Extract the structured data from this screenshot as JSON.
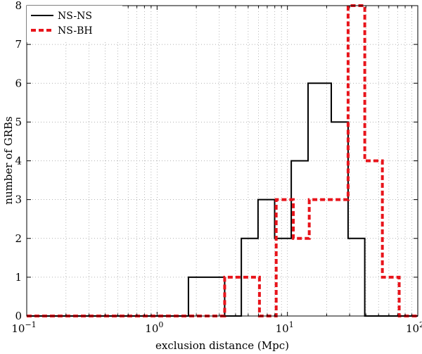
{
  "chart_data": {
    "type": "step-histogram",
    "xlabel": "exclusion distance (Mpc)",
    "ylabel": "number of GRBs",
    "x_scale": "log",
    "xlim": [
      0.1,
      100
    ],
    "ylim": [
      0,
      8
    ],
    "x_ticks": [
      {
        "value": 0.1,
        "base": "10",
        "exp": "−1"
      },
      {
        "value": 1,
        "base": "10",
        "exp": "0"
      },
      {
        "value": 10,
        "base": "10",
        "exp": "1"
      },
      {
        "value": 100,
        "base": "10",
        "exp": "2"
      }
    ],
    "y_ticks": [
      "0",
      "1",
      "2",
      "3",
      "4",
      "5",
      "6",
      "7",
      "8"
    ],
    "grid": true,
    "legend_position": "top-left",
    "series": [
      {
        "name": "NS-NS",
        "color": "#000000",
        "style": "solid",
        "bins": [
          {
            "x0": 0.1,
            "x1": 1.74,
            "count": 0
          },
          {
            "x0": 1.74,
            "x1": 3.3,
            "count": 1
          },
          {
            "x0": 3.3,
            "x1": 4.43,
            "count": 0
          },
          {
            "x0": 4.43,
            "x1": 5.95,
            "count": 2
          },
          {
            "x0": 5.95,
            "x1": 7.98,
            "count": 3
          },
          {
            "x0": 7.98,
            "x1": 10.7,
            "count": 2
          },
          {
            "x0": 10.7,
            "x1": 14.4,
            "count": 4
          },
          {
            "x0": 14.4,
            "x1": 21.7,
            "count": 6
          },
          {
            "x0": 21.7,
            "x1": 29.2,
            "count": 5
          },
          {
            "x0": 29.2,
            "x1": 39.2,
            "count": 2
          },
          {
            "x0": 39.2,
            "x1": 100,
            "count": 0
          }
        ]
      },
      {
        "name": "NS-BH",
        "color": "#e8141b",
        "style": "dashed",
        "bins": [
          {
            "x0": 0.1,
            "x1": 3.3,
            "count": 0
          },
          {
            "x0": 3.3,
            "x1": 6.1,
            "count": 1
          },
          {
            "x0": 6.1,
            "x1": 8.2,
            "count": 0
          },
          {
            "x0": 8.2,
            "x1": 11.1,
            "count": 3
          },
          {
            "x0": 11.1,
            "x1": 14.7,
            "count": 2
          },
          {
            "x0": 14.7,
            "x1": 29.2,
            "count": 3
          },
          {
            "x0": 29.2,
            "x1": 39.2,
            "count": 8
          },
          {
            "x0": 39.2,
            "x1": 53.5,
            "count": 4
          },
          {
            "x0": 53.5,
            "x1": 72.0,
            "count": 1
          },
          {
            "x0": 72.0,
            "x1": 100,
            "count": 0
          }
        ]
      }
    ]
  }
}
